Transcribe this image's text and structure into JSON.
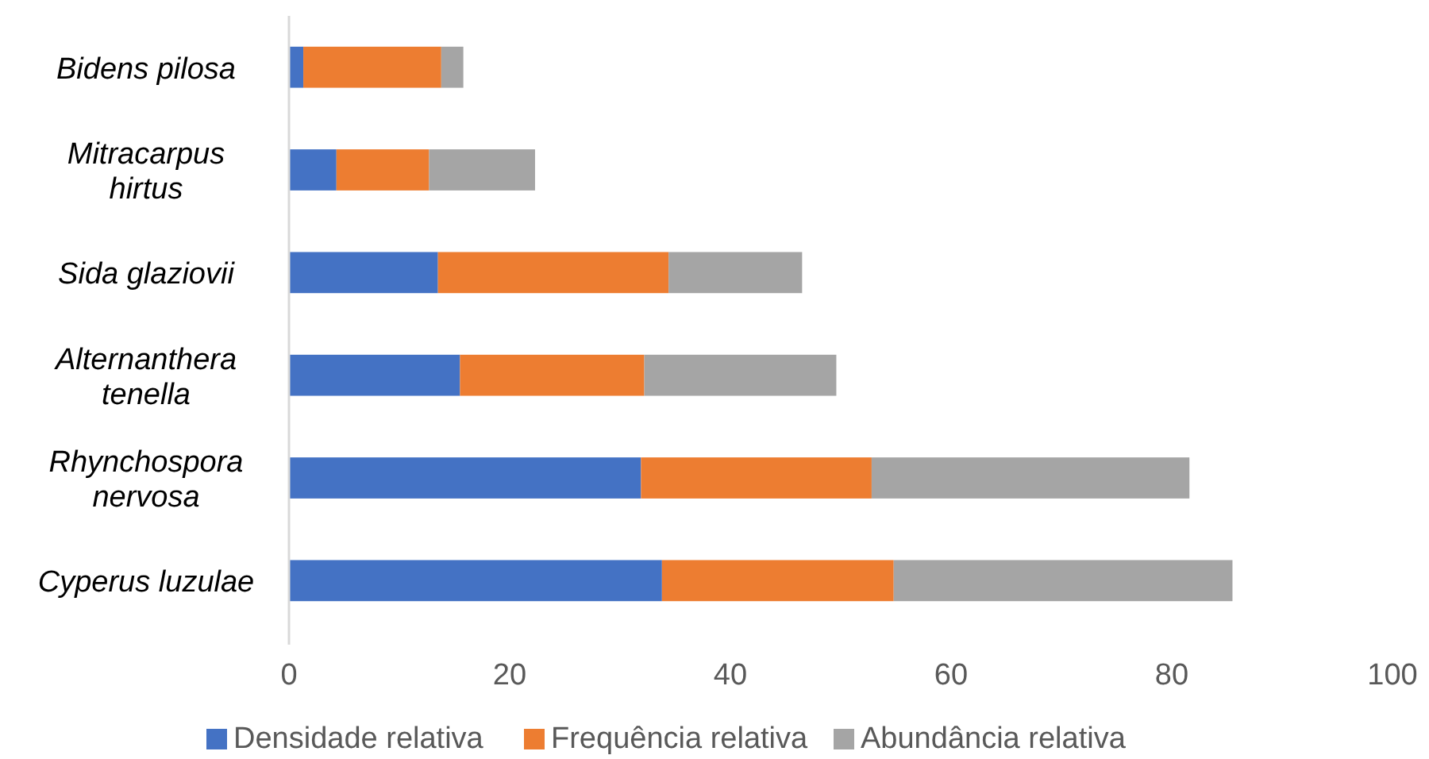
{
  "chart_data": {
    "type": "bar",
    "orientation": "horizontal",
    "stacked": true,
    "categories": [
      "Bidens pilosa",
      "Mitracarpus hirtus",
      "Sida glaziovii",
      "Alternanthera tenella",
      "Rhynchospora nervosa",
      "Cyperus luzulae"
    ],
    "series": [
      {
        "name": "Densidade relativa",
        "color": "#4472c4",
        "values": [
          1.3,
          4.3,
          13.5,
          15.5,
          31.9,
          33.8
        ]
      },
      {
        "name": "Frequência relativa",
        "color": "#ed7d31",
        "values": [
          12.5,
          8.4,
          20.9,
          16.7,
          20.9,
          21.0
        ]
      },
      {
        "name": "Abundância relativa",
        "color": "#a5a5a5",
        "values": [
          2.0,
          9.6,
          12.1,
          17.4,
          28.8,
          30.7
        ]
      }
    ],
    "xlim": [
      0,
      100
    ],
    "xticks": [
      0,
      20,
      40,
      60,
      80,
      100
    ],
    "grid": false,
    "legend": "bottom"
  }
}
